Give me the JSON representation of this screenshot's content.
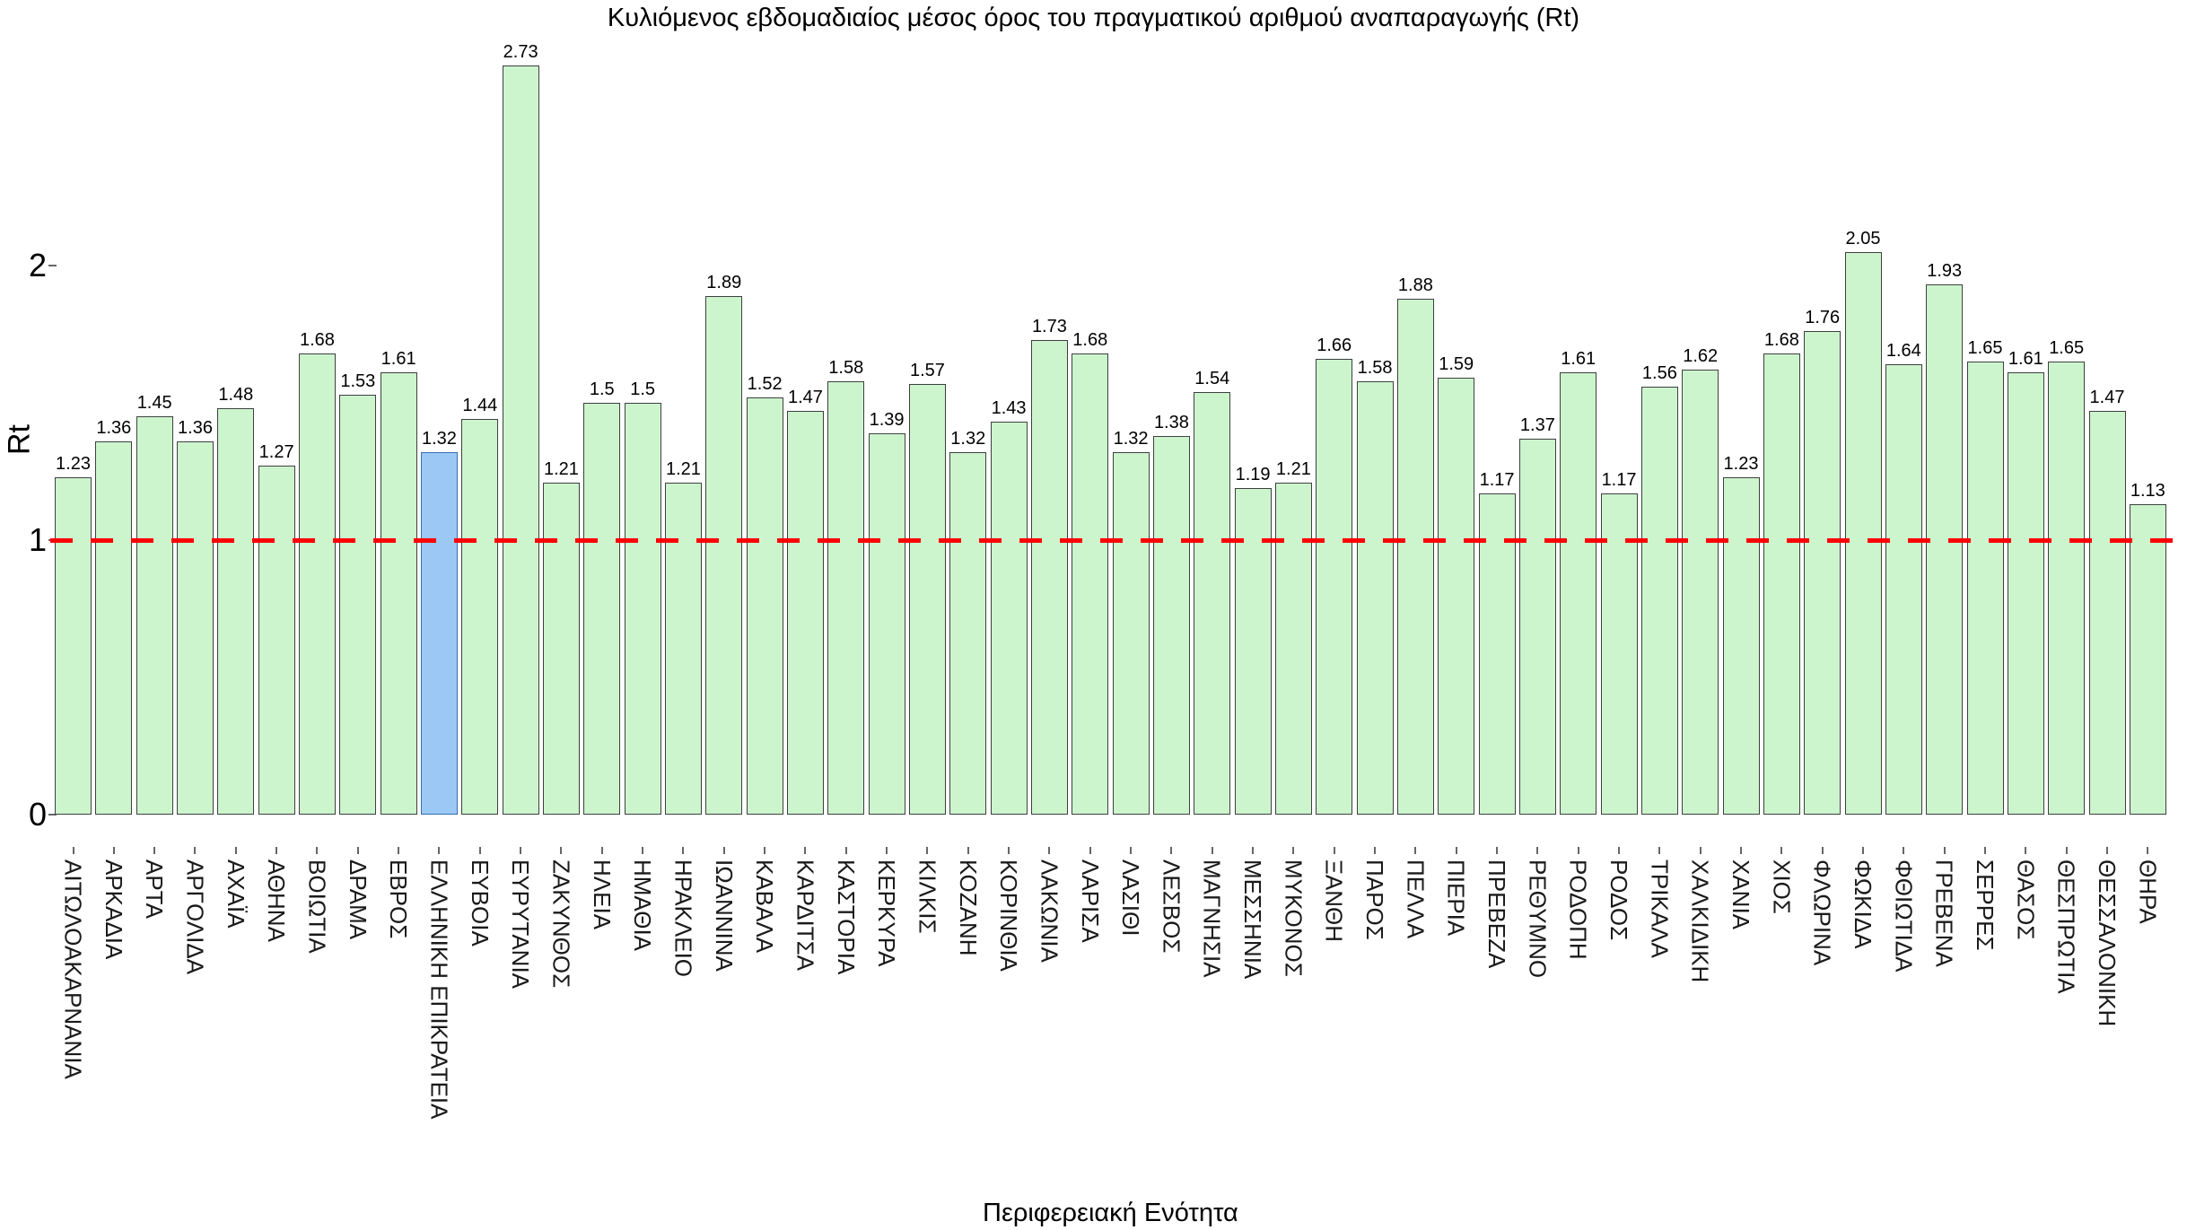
{
  "chart_data": {
    "type": "bar",
    "title": "Κυλιόμενος εβδομαδιαίος μέσος όρος του πραγματικού αριθμού αναπαραγωγής (Rt)",
    "xlabel": "Περιφερειακή Ενότητα",
    "ylabel": "Rt",
    "ylim": [
      0,
      2.85
    ],
    "yticks": [
      "0",
      "1",
      "2"
    ],
    "grid": false,
    "legend": "none",
    "reference_line": {
      "y": 1,
      "color": "#ff0000",
      "style": "dashed"
    },
    "categories": [
      "ΑΙΤΩΛΟΑΚΑΡΝΑΝΙΑ",
      "ΑΡΚΑΔΙΑ",
      "ΑΡΤΑ",
      "ΑΡΓΟΛΙΔΑ",
      "ΑΧΑΪΑ",
      "ΑΘΗΝΑ",
      "ΒΟΙΩΤΙΑ",
      "ΔΡΑΜΑ",
      "ΕΒΡΟΣ",
      "ΕΛΛΗΝΙΚΗ ΕΠΙΚΡΑΤΕΙΑ",
      "ΕΥΒΟΙΑ",
      "ΕΥΡΥΤΑΝΙΑ",
      "ΖΑΚΥΝΘΟΣ",
      "ΗΛΕΙΑ",
      "ΗΜΑΘΙΑ",
      "ΗΡΑΚΛΕΙΟ",
      "ΙΩΑΝΝΙΝΑ",
      "ΚΑΒΑΛΑ",
      "ΚΑΡΔΙΤΣΑ",
      "ΚΑΣΤΟΡΙΑ",
      "ΚΕΡΚΥΡΑ",
      "ΚΙΛΚΙΣ",
      "ΚΟΖΑΝΗ",
      "ΚΟΡΙΝΘΙΑ",
      "ΛΑΚΩΝΙΑ",
      "ΛΑΡΙΣΑ",
      "ΛΑΣΙΘΙ",
      "ΛΕΣΒΟΣ",
      "ΜΑΓΝΗΣΙΑ",
      "ΜΕΣΣΗΝΙΑ",
      "ΜΥΚΟΝΟΣ",
      "ΞΑΝΘΗ",
      "ΠΑΡΟΣ",
      "ΠΕΛΛΑ",
      "ΠΙΕΡΙΑ",
      "ΠΡΕΒΕΖΑ",
      "ΡΕΘΥΜΝΟ",
      "ΡΟΔΟΠΗ",
      "ΡΟΔΟΣ",
      "ΤΡΙΚΑΛΑ",
      "ΧΑΛΚΙΔΙΚΗ",
      "ΧΑΝΙΑ",
      "ΧΙΟΣ",
      "ΦΛΩΡΙΝΑ",
      "ΦΩΚΙΔΑ",
      "ΦΘΙΩΤΙΔΑ",
      "ΓΡΕΒΕΝΑ",
      "ΣΕΡΡΕΣ",
      "ΘΑΣΟΣ",
      "ΘΕΣΠΡΩΤΙΑ",
      "ΘΕΣΣΑΛΟΝΙΚΗ",
      "ΘΗΡΑ"
    ],
    "values": [
      1.23,
      1.36,
      1.45,
      1.36,
      1.48,
      1.27,
      1.68,
      1.53,
      1.61,
      1.32,
      1.44,
      2.73,
      1.21,
      1.5,
      1.5,
      1.21,
      1.89,
      1.52,
      1.47,
      1.58,
      1.39,
      1.57,
      1.32,
      1.43,
      1.73,
      1.68,
      1.32,
      1.38,
      1.54,
      1.19,
      1.21,
      1.66,
      1.58,
      1.88,
      1.59,
      1.17,
      1.37,
      1.61,
      1.17,
      1.56,
      1.62,
      1.23,
      1.68,
      1.76,
      2.05,
      1.64,
      1.93,
      1.65,
      1.61,
      1.65,
      1.47,
      1.13
    ],
    "bar_labels": [
      "1.23",
      "1.36",
      "1.45",
      "1.36",
      "1.48",
      "1.27",
      "1.68",
      "1.53",
      "1.61",
      "1.32",
      "1.44",
      "2.73",
      "1.21",
      "1.5",
      "1.5",
      "1.21",
      "1.89",
      "1.52",
      "1.47",
      "1.58",
      "1.39",
      "1.57",
      "1.32",
      "1.43",
      "1.73",
      "1.68",
      "1.32",
      "1.38",
      "1.54",
      "1.19",
      "1.21",
      "1.66",
      "1.58",
      "1.88",
      "1.59",
      "1.17",
      "1.37",
      "1.61",
      "1.17",
      "1.56",
      "1.62",
      "1.23",
      "1.68",
      "1.76",
      "2.05",
      "1.64",
      "1.93",
      "1.65",
      "1.61",
      "1.65",
      "1.47",
      "1.13"
    ],
    "highlight": {
      "category": "ΕΛΛΗΝΙΚΗ ΕΠΙΚΡΑΤΕΙΑ",
      "index": 9,
      "fill": "#9cc8f5",
      "border": "#3a6fb0"
    },
    "colors": {
      "bar_fill": "#ccf5cd",
      "bar_border": "#3f3f3f",
      "reference_line": "#ff0000",
      "text": "#000000",
      "tick": "#666666",
      "background": "#ffffff"
    }
  }
}
